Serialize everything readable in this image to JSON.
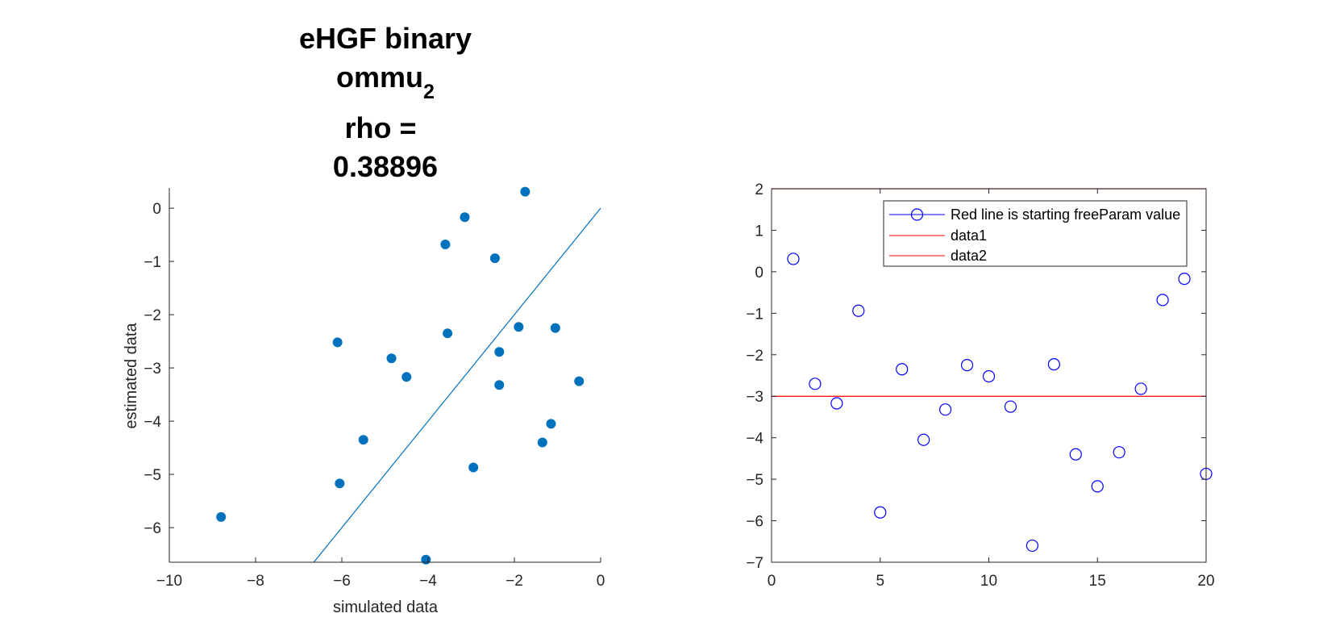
{
  "chart_data": [
    {
      "type": "scatter",
      "title_lines": [
        "eHGF binary",
        "ommu",
        "rho =",
        "0.38896"
      ],
      "title_subscript": "2",
      "xlabel": "simulated data",
      "ylabel": "estimated data",
      "xlim": [
        -10,
        0
      ],
      "ylim": [
        -6.65,
        0.38
      ],
      "xticks": [
        -10,
        -8,
        -6,
        -4,
        -2,
        0
      ],
      "yticks": [
        -6,
        -5,
        -4,
        -3,
        -2,
        -1,
        0
      ],
      "grid": false,
      "points": [
        {
          "x": -8.8,
          "y": -5.8
        },
        {
          "x": -6.1,
          "y": -2.52
        },
        {
          "x": -6.05,
          "y": -5.17
        },
        {
          "x": -5.5,
          "y": -4.35
        },
        {
          "x": -4.85,
          "y": -2.82
        },
        {
          "x": -4.5,
          "y": -3.17
        },
        {
          "x": -4.05,
          "y": -6.6
        },
        {
          "x": -3.6,
          "y": -0.68
        },
        {
          "x": -3.55,
          "y": -2.35
        },
        {
          "x": -3.15,
          "y": -0.17
        },
        {
          "x": -2.95,
          "y": -4.87
        },
        {
          "x": -2.45,
          "y": -0.94
        },
        {
          "x": -2.35,
          "y": -2.7
        },
        {
          "x": -2.35,
          "y": -3.32
        },
        {
          "x": -1.9,
          "y": -2.23
        },
        {
          "x": -1.75,
          "y": 0.31
        },
        {
          "x": -1.35,
          "y": -4.4
        },
        {
          "x": -1.15,
          "y": -4.05
        },
        {
          "x": -1.05,
          "y": -2.25
        },
        {
          "x": -0.5,
          "y": -3.25
        }
      ],
      "identity_line": {
        "x": [
          -6.65,
          0
        ],
        "y": [
          -6.65,
          0
        ]
      },
      "colors": {
        "marker": "#0072BD",
        "line": "#0072BD",
        "axis": "#262626"
      }
    },
    {
      "type": "line",
      "xlim": [
        0,
        20
      ],
      "ylim": [
        -7,
        2
      ],
      "xticks": [
        0,
        5,
        10,
        15,
        20
      ],
      "yticks": [
        2,
        1,
        0,
        -1,
        -2,
        -3,
        -4,
        -5,
        -6,
        -7
      ],
      "grid": false,
      "legend_position": "top-right",
      "series": [
        {
          "name": "Red line is starting freeParam value",
          "marker": "open-circle",
          "linestyle": "none",
          "color": "#0000FF",
          "x": [
            1,
            2,
            3,
            4,
            5,
            6,
            7,
            8,
            9,
            10,
            11,
            12,
            13,
            14,
            15,
            16,
            17,
            18,
            19,
            20
          ],
          "values": [
            0.31,
            -2.7,
            -3.17,
            -0.94,
            -5.8,
            -2.35,
            -4.05,
            -3.32,
            -2.25,
            -2.52,
            -3.25,
            -6.6,
            -2.23,
            -4.4,
            -5.17,
            -4.35,
            -2.82,
            -0.68,
            -0.17,
            -4.87
          ]
        },
        {
          "name": "data1",
          "color": "#FF0000",
          "x": [
            0,
            20
          ],
          "values": [
            2,
            2
          ]
        },
        {
          "name": "data2",
          "color": "#FF0000",
          "x": [
            0,
            20
          ],
          "values": [
            -3,
            -3
          ]
        }
      ],
      "colors": {
        "axis": "#262626"
      }
    }
  ]
}
